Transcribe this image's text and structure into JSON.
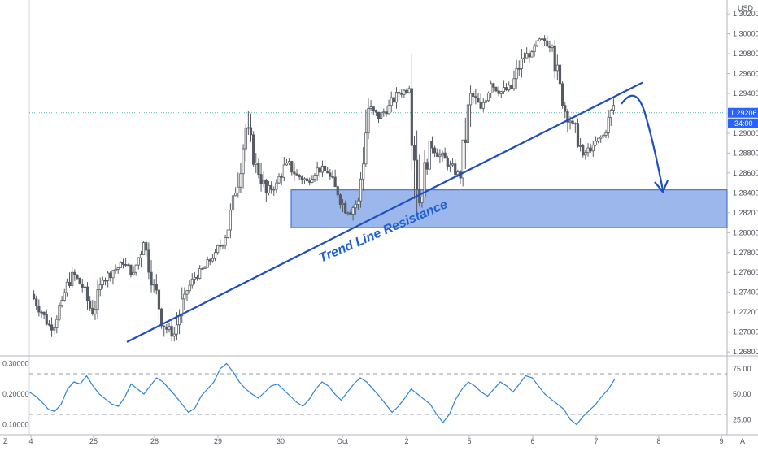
{
  "chart_data": {
    "type": "candlestick",
    "currency": "USD",
    "price_axis": {
      "ticks": [
        "1.30200",
        "1.30000",
        "1.29800",
        "1.29600",
        "1.29400",
        "1.29200",
        "1.29000",
        "1.28800",
        "1.28600",
        "1.28400",
        "1.28200",
        "1.28000",
        "1.27800",
        "1.27600",
        "1.27400",
        "1.27200",
        "1.27000",
        "1.26800"
      ],
      "range": [
        1.2676,
        1.3034
      ]
    },
    "current_price": "1.29206",
    "countdown": "34:00",
    "x_axis": {
      "ticks": [
        "4",
        "25",
        "28",
        "29",
        "30",
        "Oct",
        "2",
        "5",
        "6",
        "7",
        "8",
        "9"
      ]
    },
    "candles_ohlc_sampled": [
      [
        1.2738,
        1.2742,
        1.2712,
        1.272
      ],
      [
        1.272,
        1.2728,
        1.2695,
        1.2702
      ],
      [
        1.2702,
        1.2738,
        1.2698,
        1.2732
      ],
      [
        1.2732,
        1.2768,
        1.2725,
        1.276
      ],
      [
        1.276,
        1.2772,
        1.274,
        1.2745
      ],
      [
        1.2745,
        1.2755,
        1.271,
        1.2718
      ],
      [
        1.2718,
        1.2758,
        1.2712,
        1.2752
      ],
      [
        1.2752,
        1.277,
        1.2742,
        1.2762
      ],
      [
        1.2762,
        1.2778,
        1.2755,
        1.2768
      ],
      [
        1.2768,
        1.2785,
        1.2755,
        1.276
      ],
      [
        1.276,
        1.28,
        1.275,
        1.279
      ],
      [
        1.279,
        1.2805,
        1.274,
        1.2748
      ],
      [
        1.2748,
        1.276,
        1.2695,
        1.2705
      ],
      [
        1.2705,
        1.2718,
        1.2688,
        1.2698
      ],
      [
        1.2698,
        1.2745,
        1.2692,
        1.2738
      ],
      [
        1.2738,
        1.276,
        1.273,
        1.2755
      ],
      [
        1.2755,
        1.277,
        1.2748,
        1.2765
      ],
      [
        1.2765,
        1.2785,
        1.276,
        1.278
      ],
      [
        1.278,
        1.28,
        1.2772,
        1.2795
      ],
      [
        1.2795,
        1.285,
        1.279,
        1.284
      ],
      [
        1.284,
        1.2915,
        1.2835,
        1.2905
      ],
      [
        1.2905,
        1.293,
        1.286,
        1.287
      ],
      [
        1.287,
        1.288,
        1.283,
        1.284
      ],
      [
        1.284,
        1.2858,
        1.2828,
        1.285
      ],
      [
        1.285,
        1.288,
        1.2845,
        1.287
      ],
      [
        1.287,
        1.2885,
        1.285,
        1.2858
      ],
      [
        1.2858,
        1.287,
        1.284,
        1.2852
      ],
      [
        1.2852,
        1.2872,
        1.2845,
        1.2865
      ],
      [
        1.2865,
        1.2878,
        1.2852,
        1.286
      ],
      [
        1.286,
        1.2868,
        1.2825,
        1.2838
      ],
      [
        1.2838,
        1.2845,
        1.2812,
        1.282
      ],
      [
        1.282,
        1.284,
        1.2808,
        1.2832
      ],
      [
        1.2832,
        1.2935,
        1.2825,
        1.2925
      ],
      [
        1.2925,
        1.294,
        1.29,
        1.2915
      ],
      [
        1.2915,
        1.2935,
        1.2905,
        1.2928
      ],
      [
        1.2928,
        1.2948,
        1.2918,
        1.294
      ],
      [
        1.294,
        1.295,
        1.293,
        1.2945
      ],
      [
        1.2945,
        1.298,
        1.2815,
        1.283
      ],
      [
        1.283,
        1.29,
        1.2825,
        1.2892
      ],
      [
        1.2892,
        1.2905,
        1.287,
        1.2878
      ],
      [
        1.2878,
        1.289,
        1.286,
        1.2868
      ],
      [
        1.2868,
        1.2875,
        1.2848,
        1.2855
      ],
      [
        1.2855,
        1.2948,
        1.284,
        1.294
      ],
      [
        1.294,
        1.295,
        1.2915,
        1.2925
      ],
      [
        1.2925,
        1.2958,
        1.292,
        1.295
      ],
      [
        1.295,
        1.2965,
        1.2935,
        1.2942
      ],
      [
        1.2942,
        1.2958,
        1.293,
        1.2945
      ],
      [
        1.2945,
        1.2985,
        1.2935,
        1.2975
      ],
      [
        1.2975,
        1.299,
        1.2965,
        1.2982
      ],
      [
        1.2982,
        1.3005,
        1.2975,
        1.2995
      ],
      [
        1.2995,
        1.3008,
        1.298,
        1.2988
      ],
      [
        1.2988,
        1.2995,
        1.292,
        1.2928
      ],
      [
        1.2928,
        1.2945,
        1.29,
        1.291
      ],
      [
        1.291,
        1.2918,
        1.287,
        1.2878
      ],
      [
        1.2878,
        1.2892,
        1.2868,
        1.2888
      ],
      [
        1.2888,
        1.2902,
        1.288,
        1.2898
      ],
      [
        1.2898,
        1.2935,
        1.2895,
        1.2928
      ]
    ],
    "demand_zone": {
      "price_top": 1.2843,
      "price_bottom": 1.2805
    },
    "annotations": [
      {
        "type": "text",
        "text": "Trend Line Resistance"
      },
      {
        "type": "trend_line",
        "from_price": 1.269,
        "to_price": 1.2951
      },
      {
        "type": "arrow",
        "label": "projected path down to demand zone"
      }
    ],
    "indicator": {
      "left_ticks": [
        "0.30000",
        "0.20000",
        "0.10000"
      ],
      "right_ticks": [
        "75.00",
        "50.00",
        "25.00"
      ],
      "levels": [
        70,
        30
      ],
      "range": [
        14,
        86
      ],
      "values": [
        52,
        48,
        42,
        35,
        33,
        40,
        55,
        62,
        60,
        68,
        58,
        50,
        45,
        40,
        38,
        47,
        60,
        55,
        50,
        58,
        66,
        62,
        55,
        48,
        40,
        32,
        36,
        48,
        55,
        62,
        75,
        80,
        72,
        62,
        55,
        50,
        46,
        52,
        58,
        60,
        54,
        48,
        42,
        38,
        45,
        55,
        62,
        58,
        50,
        44,
        52,
        60,
        66,
        62,
        55,
        48,
        40,
        32,
        38,
        46,
        55,
        50,
        45,
        40,
        30,
        22,
        30,
        45,
        55,
        62,
        58,
        52,
        48,
        55,
        62,
        58,
        52,
        60,
        68,
        66,
        58,
        50,
        45,
        40,
        35,
        25,
        20,
        28,
        34,
        40,
        48,
        55,
        65
      ]
    },
    "corner_labels": {
      "bottom_left": "Z",
      "bottom_right": "A"
    }
  }
}
